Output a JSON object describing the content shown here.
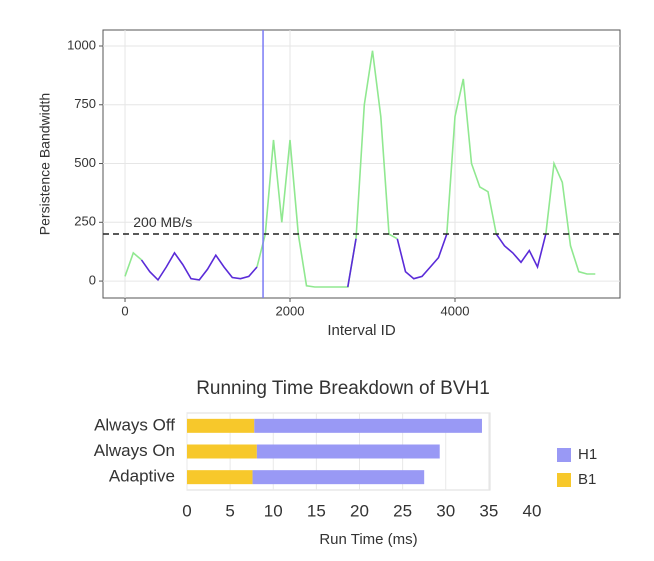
{
  "chart_data": [
    {
      "type": "line",
      "y_label": "Persistence Bandwidth",
      "x_label": "Interval ID",
      "x": [
        0,
        100,
        200,
        300,
        400,
        500,
        600,
        700,
        800,
        900,
        1000,
        1100,
        1200,
        1300,
        1400,
        1500,
        1600,
        1700,
        1800,
        1900,
        2000,
        2100,
        2200,
        2300,
        2400,
        2500,
        2600,
        2700,
        2800,
        2900,
        3000,
        3100,
        3200,
        3300,
        3400,
        3500,
        3600,
        3700,
        3800,
        3900,
        4000,
        4100,
        4200,
        4300,
        4400,
        4500,
        4600,
        4700,
        4800,
        4900,
        5000,
        5100,
        5200,
        5300,
        5400,
        5500,
        5600,
        5700
      ],
      "series": [
        {
          "color": "#90e890",
          "values": [
            20,
            120,
            90,
            null,
            null,
            null,
            null,
            null,
            null,
            null,
            null,
            null,
            null,
            null,
            null,
            null,
            60,
            200,
            600,
            250,
            600,
            200,
            -20,
            -25,
            -25,
            -25,
            -25,
            -25,
            180,
            750,
            980,
            700,
            200,
            180,
            null,
            null,
            null,
            null,
            null,
            200,
            700,
            860,
            500,
            400,
            380,
            200,
            null,
            null,
            null,
            null,
            null,
            200,
            500,
            420,
            150,
            40,
            30,
            30
          ]
        },
        {
          "color": "#5a2bd8",
          "values": [
            null,
            null,
            90,
            40,
            5,
            60,
            120,
            70,
            10,
            5,
            50,
            110,
            60,
            15,
            10,
            20,
            60,
            null,
            null,
            null,
            null,
            null,
            null,
            null,
            null,
            null,
            null,
            -25,
            180,
            null,
            null,
            null,
            null,
            180,
            40,
            10,
            20,
            60,
            100,
            200,
            null,
            null,
            null,
            null,
            null,
            200,
            150,
            120,
            80,
            130,
            60,
            200,
            null,
            null,
            null,
            null,
            null,
            null
          ]
        }
      ],
      "xlim": [
        -267,
        6000
      ],
      "ylim": [
        -72,
        1068
      ],
      "xticks": [
        0,
        2000,
        4000
      ],
      "yticks": [
        0,
        250,
        500,
        750,
        1000
      ],
      "grid": true,
      "hline": {
        "value": 200,
        "label": "200 MB/s"
      },
      "vline": {
        "value": 1673,
        "color": "#7b7bf5"
      }
    },
    {
      "type": "hbar-stacked",
      "title": "Running Time Breakdown of BVH1",
      "x_label": "Run Time (ms)",
      "categories": [
        "Always Off",
        "Always On",
        "Adaptive"
      ],
      "series": [
        {
          "name": "B1",
          "color": "#f7c82b",
          "values": [
            7.8,
            8.1,
            7.6
          ]
        },
        {
          "name": "H1",
          "color": "#9999f5",
          "values": [
            26.4,
            21.2,
            19.9
          ]
        }
      ],
      "legend_order": [
        1,
        0
      ],
      "xlim": [
        0,
        40
      ],
      "xticks": [
        0,
        5,
        10,
        15,
        20,
        25,
        30,
        35,
        40
      ],
      "grid": true
    }
  ]
}
